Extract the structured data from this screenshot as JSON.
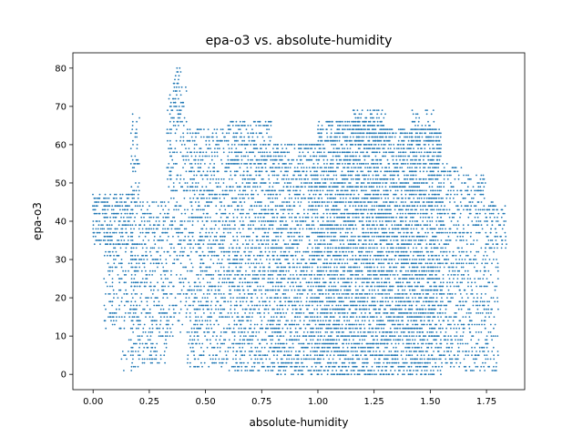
{
  "chart_data": {
    "type": "scatter",
    "title": "epa-o3 vs. absolute-humidity",
    "xlabel": "absolute-humidity",
    "ylabel": "epa-o3",
    "xlim": [
      -0.09,
      1.92
    ],
    "ylim": [
      -4,
      84
    ],
    "xticks": [
      0.0,
      0.25,
      0.5,
      0.75,
      1.0,
      1.25,
      1.5,
      1.75
    ],
    "xtick_labels": [
      "0.00",
      "0.25",
      "0.50",
      "0.75",
      "1.00",
      "1.25",
      "1.50",
      "1.75"
    ],
    "yticks": [
      0,
      10,
      20,
      30,
      40,
      50,
      60,
      70,
      80
    ],
    "ytick_labels": [
      "0",
      "10",
      "20",
      "30",
      "40",
      "50",
      "60",
      "70",
      "80"
    ],
    "grid": false,
    "color": "#1f77b4",
    "density_bands": [
      {
        "x0": 0.0,
        "x1": 0.18,
        "ymin": 34,
        "ymax": 47,
        "density": 0.55
      },
      {
        "x0": 0.05,
        "x1": 0.2,
        "ymin": 12,
        "ymax": 34,
        "density": 0.25
      },
      {
        "x0": 0.12,
        "x1": 0.17,
        "ymin": 0,
        "ymax": 12,
        "density": 0.12
      },
      {
        "x0": 0.17,
        "x1": 0.21,
        "ymin": 1,
        "ymax": 68,
        "density": 0.3
      },
      {
        "x0": 0.21,
        "x1": 0.33,
        "ymin": 3,
        "ymax": 45,
        "density": 0.35
      },
      {
        "x0": 0.33,
        "x1": 0.42,
        "ymin": 10,
        "ymax": 76,
        "density": 0.25
      },
      {
        "x0": 0.36,
        "x1": 0.39,
        "ymin": 68,
        "ymax": 80,
        "density": 0.35
      },
      {
        "x0": 0.42,
        "x1": 0.6,
        "ymin": 2,
        "ymax": 64,
        "density": 0.35
      },
      {
        "x0": 0.6,
        "x1": 0.8,
        "ymin": 1,
        "ymax": 66,
        "density": 0.45
      },
      {
        "x0": 0.8,
        "x1": 1.0,
        "ymin": 0,
        "ymax": 60,
        "density": 0.5
      },
      {
        "x0": 1.0,
        "x1": 1.3,
        "ymin": 0,
        "ymax": 66,
        "density": 0.6
      },
      {
        "x0": 1.15,
        "x1": 1.3,
        "ymin": 60,
        "ymax": 69,
        "density": 0.3
      },
      {
        "x0": 1.3,
        "x1": 1.55,
        "ymin": 0,
        "ymax": 64,
        "density": 0.6
      },
      {
        "x0": 1.42,
        "x1": 1.52,
        "ymin": 60,
        "ymax": 69,
        "density": 0.25
      },
      {
        "x0": 1.55,
        "x1": 1.65,
        "ymin": 2,
        "ymax": 55,
        "density": 0.35
      },
      {
        "x0": 1.65,
        "x1": 1.75,
        "ymin": 1,
        "ymax": 52,
        "density": 0.3
      },
      {
        "x0": 1.74,
        "x1": 1.8,
        "ymin": 1,
        "ymax": 45,
        "density": 0.2
      },
      {
        "x0": 1.75,
        "x1": 1.84,
        "ymin": 33,
        "ymax": 44,
        "density": 0.25
      }
    ]
  }
}
